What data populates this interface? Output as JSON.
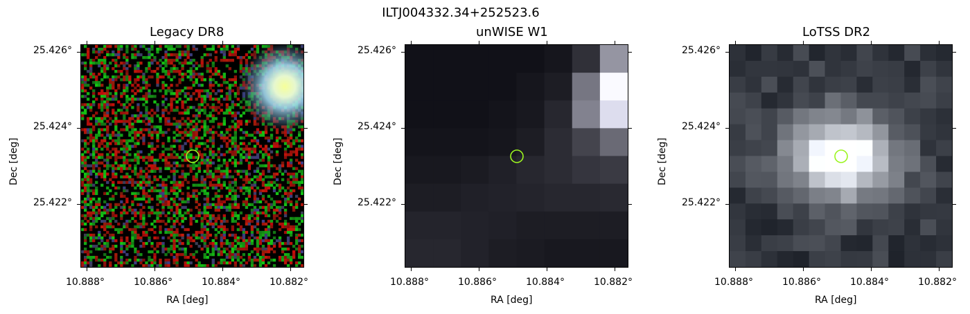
{
  "figure": {
    "suptitle": "ILTJ004332.34+252523.6"
  },
  "panels": [
    {
      "title": "Legacy DR8",
      "xlabel": "RA [deg]",
      "ylabel": "Dec [deg]",
      "yticks": [
        "25.426°",
        "25.424°",
        "25.422°"
      ],
      "xticks": [
        "10.888°",
        "10.886°",
        "10.884°",
        "10.882°"
      ]
    },
    {
      "title": "unWISE W1",
      "xlabel": "RA [deg]",
      "ylabel": "Dec [deg]",
      "yticks": [
        "25.426°",
        "25.424°",
        "25.422°"
      ],
      "xticks": [
        "10.888°",
        "10.886°",
        "10.884°",
        "10.882°"
      ]
    },
    {
      "title": "LoTSS DR2",
      "xlabel": "RA [deg]",
      "ylabel": "Dec [deg]",
      "yticks": [
        "25.426°",
        "25.424°",
        "25.422°"
      ],
      "xticks": [
        "10.888°",
        "10.886°",
        "10.884°",
        "10.882°"
      ]
    }
  ],
  "colors": {
    "marker": "#9cf520",
    "axes": "#000000"
  }
}
